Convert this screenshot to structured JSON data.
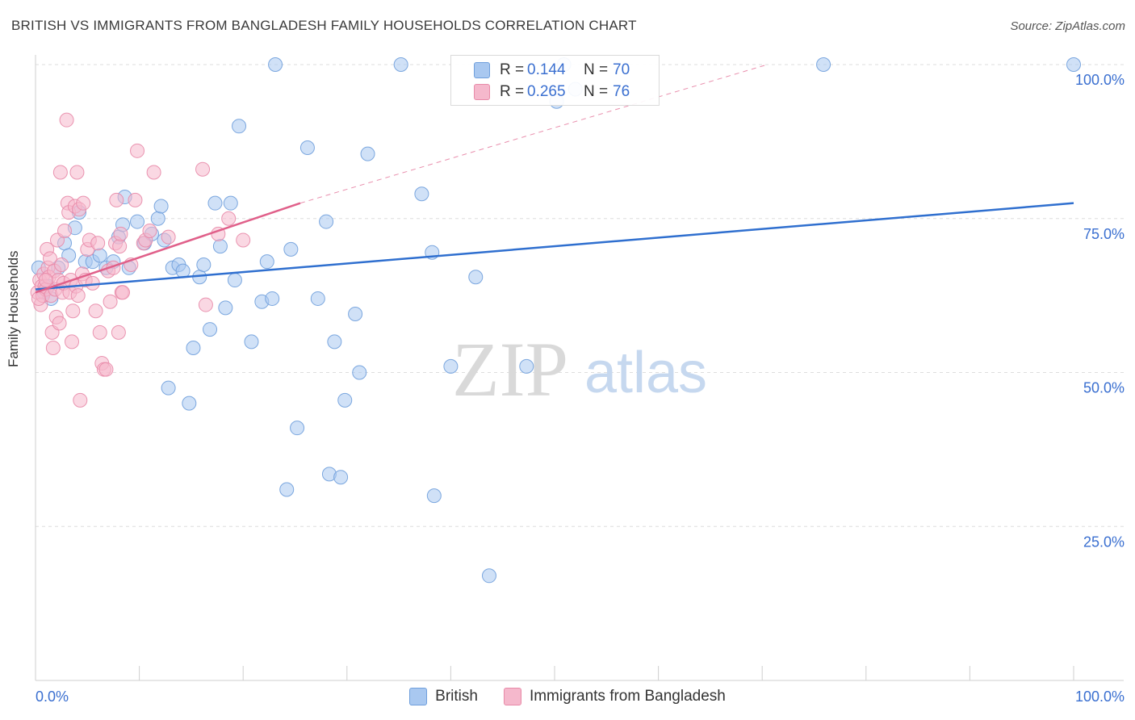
{
  "title": "BRITISH VS IMMIGRANTS FROM BANGLADESH FAMILY HOUSEHOLDS CORRELATION CHART",
  "source": "Source: ZipAtlas.com",
  "watermark": {
    "zip": "ZIP",
    "atlas": "atlas"
  },
  "legend_top": {
    "british": {
      "r_label": "R =",
      "r_value": "0.144",
      "n_label": "N =",
      "n_value": "70"
    },
    "bangladesh": {
      "r_label": "R =",
      "r_value": "0.265",
      "n_label": "N =",
      "n_value": "76"
    }
  },
  "legend_bottom": {
    "british": "British",
    "bangladesh": "Immigrants from Bangladesh"
  },
  "colors": {
    "british_fill": "#a9c8f0",
    "british_stroke": "#6f9fdc",
    "british_line": "#2f6fcf",
    "bangladesh_fill": "#f5b8cc",
    "bangladesh_stroke": "#e88aa8",
    "bangladesh_line": "#e0608a",
    "axis_text": "#3a6fd0"
  },
  "chart_data": {
    "type": "scatter",
    "title": "BRITISH VS IMMIGRANTS FROM BANGLADESH FAMILY HOUSEHOLDS CORRELATION CHART",
    "xlabel": "",
    "ylabel": "Family Households",
    "xlim": [
      0,
      100
    ],
    "ylim": [
      0,
      100
    ],
    "x_tick_labels": [
      "0.0%",
      "100.0%"
    ],
    "y_tick_labels": [
      "25.0%",
      "50.0%",
      "75.0%",
      "100.0%"
    ],
    "y_ticks": [
      25,
      50,
      75,
      100
    ],
    "grid": true,
    "legend_position": "top-center",
    "series": [
      {
        "name": "British",
        "r": 0.144,
        "n": 70,
        "trend": {
          "x": [
            0,
            100
          ],
          "y": [
            63.5,
            77.5
          ],
          "dashed_extension": false
        },
        "points": [
          [
            0.3,
            67
          ],
          [
            0.8,
            63
          ],
          [
            1.2,
            64
          ],
          [
            1.5,
            62
          ],
          [
            2.2,
            67
          ],
          [
            2.8,
            71
          ],
          [
            3.2,
            69
          ],
          [
            3.8,
            73.5
          ],
          [
            4.2,
            76
          ],
          [
            4.8,
            68
          ],
          [
            5.5,
            68
          ],
          [
            6.2,
            69
          ],
          [
            6.8,
            67
          ],
          [
            7.5,
            68
          ],
          [
            8.0,
            72
          ],
          [
            8.4,
            74
          ],
          [
            8.6,
            78.5
          ],
          [
            9.0,
            67
          ],
          [
            9.8,
            74.5
          ],
          [
            10.5,
            71
          ],
          [
            11.2,
            72.5
          ],
          [
            11.8,
            75
          ],
          [
            12.1,
            77
          ],
          [
            12.4,
            71.5
          ],
          [
            12.8,
            47.5
          ],
          [
            13.2,
            67
          ],
          [
            13.8,
            67.5
          ],
          [
            14.2,
            66.5
          ],
          [
            14.8,
            45
          ],
          [
            15.2,
            54
          ],
          [
            15.8,
            65.5
          ],
          [
            16.2,
            67.5
          ],
          [
            16.8,
            57
          ],
          [
            17.3,
            77.5
          ],
          [
            17.8,
            70.5
          ],
          [
            18.3,
            60.5
          ],
          [
            18.8,
            77.5
          ],
          [
            19.2,
            65
          ],
          [
            19.6,
            90
          ],
          [
            20.8,
            55
          ],
          [
            21.8,
            61.5
          ],
          [
            22.3,
            68
          ],
          [
            22.8,
            62
          ],
          [
            23.1,
            100
          ],
          [
            24.2,
            31
          ],
          [
            24.6,
            70
          ],
          [
            25.2,
            41
          ],
          [
            26.2,
            86.5
          ],
          [
            27.2,
            62
          ],
          [
            28.0,
            74.5
          ],
          [
            28.3,
            33.5
          ],
          [
            28.8,
            55
          ],
          [
            29.4,
            33
          ],
          [
            29.8,
            45.5
          ],
          [
            30.8,
            59.5
          ],
          [
            31.2,
            50
          ],
          [
            32.0,
            85.5
          ],
          [
            35.2,
            100
          ],
          [
            37.2,
            79
          ],
          [
            38.2,
            69.5
          ],
          [
            38.4,
            30
          ],
          [
            40.0,
            51
          ],
          [
            42.4,
            65.5
          ],
          [
            43.7,
            17
          ],
          [
            47.3,
            51
          ],
          [
            50.2,
            94
          ],
          [
            50.9,
            100
          ],
          [
            52.0,
            96
          ],
          [
            75.9,
            100
          ],
          [
            100,
            100
          ]
        ]
      },
      {
        "name": "Immigrants from Bangladesh",
        "r": 0.265,
        "n": 76,
        "trend": {
          "x": [
            0,
            25.5
          ],
          "y": [
            63,
            77.5
          ],
          "dashed_to": [
            70.5,
            100
          ]
        },
        "points": [
          [
            0.2,
            63
          ],
          [
            0.4,
            65
          ],
          [
            0.5,
            61
          ],
          [
            0.6,
            64
          ],
          [
            0.7,
            62.5
          ],
          [
            0.8,
            66
          ],
          [
            0.9,
            64
          ],
          [
            1.0,
            63.5
          ],
          [
            1.1,
            70
          ],
          [
            1.2,
            67
          ],
          [
            1.3,
            65.5
          ],
          [
            1.4,
            68.5
          ],
          [
            1.5,
            62.5
          ],
          [
            1.6,
            56.5
          ],
          [
            1.7,
            54
          ],
          [
            1.8,
            66.5
          ],
          [
            1.9,
            63.5
          ],
          [
            2.0,
            59
          ],
          [
            2.1,
            71.5
          ],
          [
            2.2,
            65
          ],
          [
            2.3,
            58
          ],
          [
            2.4,
            82.5
          ],
          [
            2.5,
            67.5
          ],
          [
            2.6,
            63
          ],
          [
            2.7,
            64.5
          ],
          [
            2.8,
            73
          ],
          [
            3.0,
            91
          ],
          [
            3.1,
            77.5
          ],
          [
            3.2,
            76
          ],
          [
            3.3,
            63
          ],
          [
            3.4,
            65
          ],
          [
            3.5,
            55
          ],
          [
            3.6,
            60
          ],
          [
            3.8,
            77
          ],
          [
            3.9,
            64
          ],
          [
            4.0,
            82.5
          ],
          [
            4.1,
            62.5
          ],
          [
            4.2,
            76.5
          ],
          [
            4.3,
            45.5
          ],
          [
            4.5,
            66
          ],
          [
            4.6,
            77.5
          ],
          [
            4.8,
            65
          ],
          [
            5.0,
            70
          ],
          [
            5.2,
            71.5
          ],
          [
            5.5,
            64.5
          ],
          [
            5.8,
            60
          ],
          [
            6.0,
            71
          ],
          [
            6.2,
            56.5
          ],
          [
            6.4,
            51.5
          ],
          [
            6.6,
            50.5
          ],
          [
            6.8,
            50.5
          ],
          [
            7.0,
            66.5
          ],
          [
            7.2,
            61.5
          ],
          [
            7.5,
            67
          ],
          [
            7.7,
            71
          ],
          [
            7.8,
            78
          ],
          [
            8.0,
            56.5
          ],
          [
            8.1,
            70.5
          ],
          [
            8.2,
            72.5
          ],
          [
            8.3,
            63
          ],
          [
            8.4,
            63
          ],
          [
            9.2,
            67.5
          ],
          [
            9.6,
            78
          ],
          [
            9.8,
            86
          ],
          [
            10.4,
            71
          ],
          [
            10.6,
            71.5
          ],
          [
            11.0,
            73
          ],
          [
            11.4,
            82.5
          ],
          [
            12.8,
            72
          ],
          [
            16.1,
            83
          ],
          [
            16.4,
            61
          ],
          [
            17.6,
            72.5
          ],
          [
            18.6,
            75
          ],
          [
            20.0,
            71.5
          ],
          [
            0.3,
            62
          ],
          [
            1.0,
            65
          ]
        ]
      }
    ]
  }
}
